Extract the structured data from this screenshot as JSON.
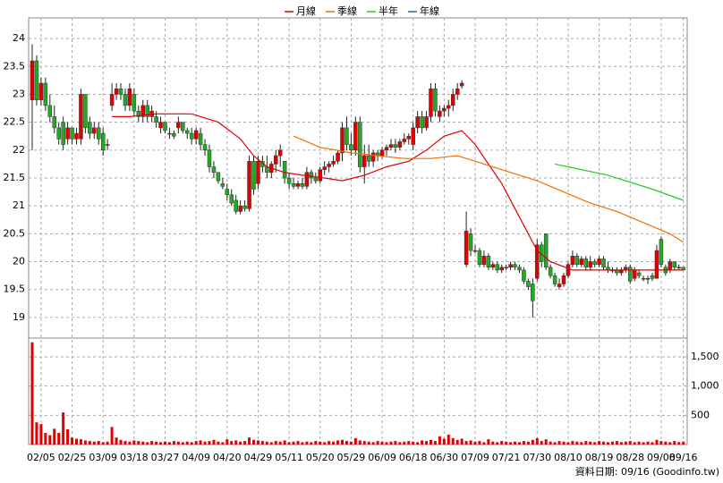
{
  "chart_data": {
    "type": "candlestick",
    "legend": {
      "position": "top"
    },
    "up_color": "#e00000",
    "down_color": "#22aa22",
    "volume_color": "#e00000",
    "ylim": [
      18.63,
      24.37
    ],
    "yticks": [
      19,
      19.5,
      20,
      20.5,
      21,
      21.5,
      22,
      22.5,
      23,
      23.5,
      24
    ],
    "volume_ylim": [
      0,
      1822
    ],
    "volume_ticks": [
      500,
      {
        "value": 1000,
        "label": "1,000"
      },
      {
        "value": 1500,
        "label": "1,500"
      }
    ],
    "grid": true,
    "footer": "資料日期: 09/16 (Goodinfo.tw)",
    "categories": [
      null,
      null,
      "02/05",
      null,
      null,
      null,
      null,
      null,
      null,
      "02/25",
      null,
      null,
      null,
      null,
      null,
      null,
      "03/09",
      null,
      null,
      null,
      null,
      null,
      null,
      "03/18",
      null,
      null,
      null,
      null,
      null,
      null,
      "03/27",
      null,
      null,
      null,
      null,
      null,
      null,
      "04/09",
      null,
      null,
      null,
      null,
      null,
      null,
      "04/20",
      null,
      null,
      null,
      null,
      null,
      null,
      "04/29",
      null,
      null,
      null,
      null,
      null,
      null,
      "05/11",
      null,
      null,
      null,
      null,
      null,
      null,
      "05/20",
      null,
      null,
      null,
      null,
      null,
      null,
      "05/29",
      null,
      null,
      null,
      null,
      null,
      null,
      "06/09",
      null,
      null,
      null,
      null,
      null,
      null,
      "06/18",
      null,
      null,
      null,
      null,
      null,
      null,
      "06/30",
      null,
      null,
      null,
      null,
      null,
      null,
      "07/09",
      null,
      null,
      null,
      null,
      null,
      null,
      "07/21",
      null,
      null,
      null,
      null,
      null,
      null,
      "07/30",
      null,
      null,
      null,
      null,
      null,
      null,
      "08/10",
      null,
      null,
      null,
      null,
      null,
      null,
      "08/19",
      null,
      null,
      null,
      null,
      null,
      null,
      "08/28",
      null,
      null,
      null,
      null,
      null,
      null,
      "09/08",
      null,
      null,
      null,
      null,
      "09/16"
    ],
    "candles": [
      [
        22.9,
        23.9,
        22.0,
        23.6
      ],
      [
        23.6,
        23.7,
        22.8,
        22.9
      ],
      [
        22.9,
        23.3,
        22.8,
        23.2
      ],
      [
        23.2,
        23.3,
        22.7,
        22.8
      ],
      [
        22.8,
        23.0,
        22.5,
        22.6
      ],
      [
        22.6,
        22.8,
        22.3,
        22.4
      ],
      [
        22.4,
        22.5,
        22.1,
        22.2
      ],
      [
        22.5,
        22.6,
        22.0,
        22.1
      ],
      [
        22.2,
        22.5,
        22.1,
        22.4
      ],
      [
        22.4,
        22.4,
        22.1,
        22.2
      ],
      [
        22.2,
        22.4,
        22.1,
        22.3
      ],
      [
        22.2,
        23.1,
        22.1,
        23.0
      ],
      [
        23.0,
        23.0,
        22.3,
        22.4
      ],
      [
        22.5,
        22.6,
        22.2,
        22.3
      ],
      [
        22.3,
        22.5,
        22.2,
        22.4
      ],
      [
        22.4,
        22.5,
        22.1,
        22.2
      ],
      [
        22.3,
        22.4,
        21.9,
        22.0
      ],
      [
        22.1,
        22.2,
        22.0,
        22.1
      ],
      [
        22.8,
        23.2,
        22.7,
        23.0
      ],
      [
        23.0,
        23.2,
        22.9,
        23.1
      ],
      [
        23.1,
        23.2,
        22.9,
        23.0
      ],
      [
        23.0,
        23.1,
        22.7,
        22.8
      ],
      [
        22.8,
        23.2,
        22.7,
        23.1
      ],
      [
        23.0,
        23.1,
        22.6,
        22.7
      ],
      [
        22.7,
        22.8,
        22.5,
        22.6
      ],
      [
        22.6,
        22.9,
        22.5,
        22.8
      ],
      [
        22.8,
        22.9,
        22.5,
        22.6
      ],
      [
        22.6,
        22.8,
        22.5,
        22.7
      ],
      [
        22.6,
        22.7,
        22.4,
        22.5
      ],
      [
        22.4,
        22.6,
        22.3,
        22.5
      ],
      [
        22.5,
        22.5,
        22.3,
        22.35
      ],
      [
        22.3,
        22.4,
        22.2,
        22.3
      ],
      [
        22.3,
        22.35,
        22.2,
        22.25
      ],
      [
        22.4,
        22.6,
        22.3,
        22.5
      ],
      [
        22.5,
        22.5,
        22.3,
        22.35
      ],
      [
        22.35,
        22.4,
        22.2,
        22.3
      ],
      [
        22.3,
        22.4,
        22.1,
        22.2
      ],
      [
        22.2,
        22.4,
        22.1,
        22.35
      ],
      [
        22.3,
        22.4,
        22.0,
        22.1
      ],
      [
        22.1,
        22.2,
        21.9,
        22.0
      ],
      [
        22.0,
        22.1,
        21.6,
        21.7
      ],
      [
        21.7,
        21.8,
        21.5,
        21.6
      ],
      [
        21.6,
        21.6,
        21.4,
        21.45
      ],
      [
        21.4,
        21.5,
        21.3,
        21.35
      ],
      [
        21.3,
        21.4,
        21.1,
        21.2
      ],
      [
        21.2,
        21.3,
        21.0,
        21.05
      ],
      [
        21.1,
        21.2,
        20.85,
        20.9
      ],
      [
        20.9,
        21.1,
        20.85,
        21.0
      ],
      [
        21.0,
        21.1,
        20.9,
        20.95
      ],
      [
        20.95,
        21.9,
        20.9,
        21.8
      ],
      [
        21.8,
        21.9,
        21.2,
        21.3
      ],
      [
        21.4,
        21.9,
        21.3,
        21.8
      ],
      [
        21.8,
        21.9,
        21.6,
        21.7
      ],
      [
        21.7,
        21.9,
        21.5,
        21.6
      ],
      [
        21.6,
        21.8,
        21.5,
        21.75
      ],
      [
        21.75,
        22.0,
        21.6,
        21.9
      ],
      [
        21.9,
        22.1,
        21.7,
        22.0
      ],
      [
        21.8,
        21.8,
        21.4,
        21.5
      ],
      [
        21.5,
        21.6,
        21.3,
        21.4
      ],
      [
        21.4,
        21.5,
        21.3,
        21.35
      ],
      [
        21.35,
        21.45,
        21.3,
        21.4
      ],
      [
        21.4,
        21.5,
        21.3,
        21.35
      ],
      [
        21.35,
        21.7,
        21.3,
        21.6
      ],
      [
        21.6,
        21.65,
        21.4,
        21.5
      ],
      [
        21.5,
        21.6,
        21.4,
        21.45
      ],
      [
        21.45,
        21.7,
        21.4,
        21.65
      ],
      [
        21.65,
        21.8,
        21.55,
        21.7
      ],
      [
        21.7,
        21.8,
        21.6,
        21.75
      ],
      [
        21.75,
        21.9,
        21.7,
        21.8
      ],
      [
        21.8,
        22.0,
        21.75,
        21.95
      ],
      [
        21.95,
        22.5,
        21.8,
        22.4
      ],
      [
        22.4,
        22.6,
        22.0,
        22.1
      ],
      [
        22.1,
        22.3,
        21.9,
        22.0
      ],
      [
        22.0,
        22.6,
        21.9,
        22.5
      ],
      [
        22.5,
        22.6,
        21.6,
        21.7
      ],
      [
        21.7,
        22.1,
        21.4,
        21.9
      ],
      [
        21.9,
        22.1,
        21.7,
        21.8
      ],
      [
        21.8,
        22.0,
        21.7,
        21.95
      ],
      [
        21.95,
        22.0,
        21.8,
        21.9
      ],
      [
        21.9,
        22.05,
        21.85,
        22.0
      ],
      [
        22.0,
        22.1,
        21.9,
        22.05
      ],
      [
        22.05,
        22.2,
        22.0,
        22.1
      ],
      [
        22.1,
        22.2,
        21.95,
        22.05
      ],
      [
        22.05,
        22.2,
        22.0,
        22.15
      ],
      [
        22.15,
        22.3,
        22.1,
        22.2
      ],
      [
        22.2,
        22.3,
        22.1,
        22.25
      ],
      [
        22.1,
        22.5,
        22.0,
        22.4
      ],
      [
        22.4,
        22.7,
        22.3,
        22.6
      ],
      [
        22.6,
        22.7,
        22.3,
        22.4
      ],
      [
        22.4,
        22.7,
        22.35,
        22.6
      ],
      [
        22.6,
        23.2,
        22.5,
        23.1
      ],
      [
        23.1,
        23.2,
        22.6,
        22.7
      ],
      [
        22.6,
        22.8,
        22.5,
        22.7
      ],
      [
        22.7,
        22.8,
        22.6,
        22.75
      ],
      [
        22.75,
        22.9,
        22.6,
        22.8
      ],
      [
        22.8,
        23.1,
        22.7,
        23.0
      ],
      [
        23.0,
        23.2,
        22.9,
        23.1
      ],
      [
        23.15,
        23.25,
        23.1,
        23.2
      ],
      [
        19.95,
        20.9,
        19.9,
        20.55
      ],
      [
        20.5,
        20.6,
        20.1,
        20.2
      ],
      [
        20.2,
        20.3,
        20.15,
        20.2
      ],
      [
        20.2,
        20.25,
        19.9,
        19.95
      ],
      [
        19.95,
        20.2,
        19.9,
        20.1
      ],
      [
        20.1,
        20.15,
        19.85,
        19.9
      ],
      [
        19.9,
        20.0,
        19.85,
        19.95
      ],
      [
        19.95,
        20.0,
        19.8,
        19.85
      ],
      [
        19.85,
        19.95,
        19.8,
        19.9
      ],
      [
        19.9,
        19.95,
        19.85,
        19.9
      ],
      [
        19.9,
        20.0,
        19.85,
        19.95
      ],
      [
        19.95,
        20.0,
        19.85,
        19.9
      ],
      [
        19.9,
        19.95,
        19.8,
        19.85
      ],
      [
        19.85,
        19.9,
        19.6,
        19.65
      ],
      [
        19.65,
        19.7,
        19.5,
        19.55
      ],
      [
        19.6,
        19.7,
        19.0,
        19.3
      ],
      [
        19.7,
        20.4,
        19.65,
        20.3
      ],
      [
        20.3,
        20.35,
        19.9,
        20.0
      ],
      [
        20.5,
        20.5,
        19.85,
        19.9
      ],
      [
        19.9,
        19.95,
        19.7,
        19.75
      ],
      [
        19.75,
        19.8,
        19.55,
        19.6
      ],
      [
        19.55,
        19.7,
        19.5,
        19.6
      ],
      [
        19.6,
        19.8,
        19.55,
        19.75
      ],
      [
        19.75,
        20.0,
        19.7,
        19.95
      ],
      [
        19.95,
        20.2,
        19.9,
        20.1
      ],
      [
        20.1,
        20.15,
        19.9,
        19.95
      ],
      [
        19.95,
        20.1,
        19.9,
        20.05
      ],
      [
        20.05,
        20.1,
        19.85,
        19.9
      ],
      [
        19.9,
        20.1,
        19.85,
        20.0
      ],
      [
        20.0,
        20.05,
        19.9,
        19.95
      ],
      [
        19.95,
        20.1,
        19.9,
        20.05
      ],
      [
        20.05,
        20.1,
        19.85,
        19.9
      ],
      [
        19.9,
        20.0,
        19.8,
        19.85
      ],
      [
        19.85,
        19.9,
        19.8,
        19.85
      ],
      [
        19.85,
        19.9,
        19.75,
        19.8
      ],
      [
        19.8,
        19.9,
        19.75,
        19.85
      ],
      [
        19.85,
        19.95,
        19.8,
        19.9
      ],
      [
        19.9,
        19.95,
        19.6,
        19.65
      ],
      [
        19.7,
        19.9,
        19.65,
        19.85
      ],
      [
        19.8,
        19.85,
        19.7,
        19.75
      ],
      [
        19.7,
        19.75,
        19.65,
        19.7
      ],
      [
        19.7,
        19.75,
        19.6,
        19.7
      ],
      [
        19.75,
        19.8,
        19.65,
        19.7
      ],
      [
        19.7,
        20.3,
        19.7,
        20.2
      ],
      [
        20.4,
        20.45,
        19.9,
        19.95
      ],
      [
        19.9,
        19.95,
        19.75,
        19.8
      ],
      [
        19.85,
        20.05,
        19.8,
        20.0
      ],
      [
        20.0,
        20.0,
        19.85,
        19.9
      ],
      [
        19.9,
        19.95,
        19.85,
        19.9
      ],
      [
        19.9,
        19.9,
        19.85,
        19.85
      ]
    ],
    "volume": [
      1750,
      380,
      350,
      200,
      160,
      270,
      200,
      550,
      260,
      120,
      100,
      90,
      70,
      60,
      50,
      60,
      40,
      50,
      300,
      120,
      80,
      60,
      50,
      70,
      60,
      50,
      40,
      60,
      50,
      40,
      50,
      40,
      60,
      50,
      40,
      50,
      40,
      60,
      70,
      50,
      60,
      80,
      50,
      40,
      90,
      60,
      70,
      50,
      60,
      120,
      80,
      70,
      60,
      50,
      40,
      60,
      50,
      70,
      40,
      50,
      60,
      40,
      50,
      40,
      60,
      50,
      40,
      60,
      50,
      70,
      80,
      60,
      50,
      110,
      70,
      60,
      50,
      40,
      60,
      50,
      40,
      50,
      60,
      40,
      50,
      60,
      50,
      40,
      70,
      60,
      80,
      60,
      140,
      100,
      170,
      110,
      80,
      100,
      60,
      70,
      50,
      60,
      40,
      90,
      50,
      40,
      60,
      50,
      40,
      50,
      40,
      60,
      50,
      80,
      110,
      60,
      90,
      50,
      40,
      60,
      50,
      40,
      60,
      50,
      40,
      60,
      50,
      40,
      60,
      50,
      40,
      50,
      60,
      40,
      50,
      60,
      40,
      50,
      40,
      50,
      40,
      80,
      60,
      50,
      40,
      60,
      40,
      50
    ],
    "series": [
      {
        "name": "月線",
        "color": "#e00000",
        "x": [
          18,
          22,
          28,
          36,
          42,
          47,
          50,
          53,
          57,
          61,
          66,
          70,
          75,
          80,
          85,
          89,
          93,
          97,
          100,
          106,
          110,
          114,
          117,
          122,
          127,
          133,
          138,
          143,
          147
        ],
        "values": [
          22.6,
          22.6,
          22.65,
          22.65,
          22.5,
          22.2,
          21.9,
          21.7,
          21.6,
          21.55,
          21.5,
          21.45,
          21.55,
          21.7,
          21.8,
          22.0,
          22.25,
          22.35,
          22.1,
          21.4,
          20.8,
          20.2,
          20.0,
          19.85,
          19.85,
          19.85,
          19.85,
          19.85,
          19.85
        ]
      },
      {
        "name": "季線",
        "color": "#f07000",
        "x": [
          59,
          65,
          72,
          78,
          84,
          90,
          96,
          102,
          108,
          114,
          120,
          126,
          132,
          138,
          144,
          147
        ],
        "values": [
          22.25,
          22.05,
          21.95,
          21.9,
          21.85,
          21.85,
          21.9,
          21.75,
          21.6,
          21.45,
          21.25,
          21.05,
          20.9,
          20.7,
          20.5,
          20.35
        ]
      },
      {
        "name": "半年",
        "color": "#22cc22",
        "x": [
          118,
          130,
          140,
          147
        ],
        "values": [
          21.75,
          21.55,
          21.3,
          21.1
        ]
      },
      {
        "name": "年線",
        "color": "#2060e0",
        "x": [],
        "values": []
      }
    ]
  }
}
